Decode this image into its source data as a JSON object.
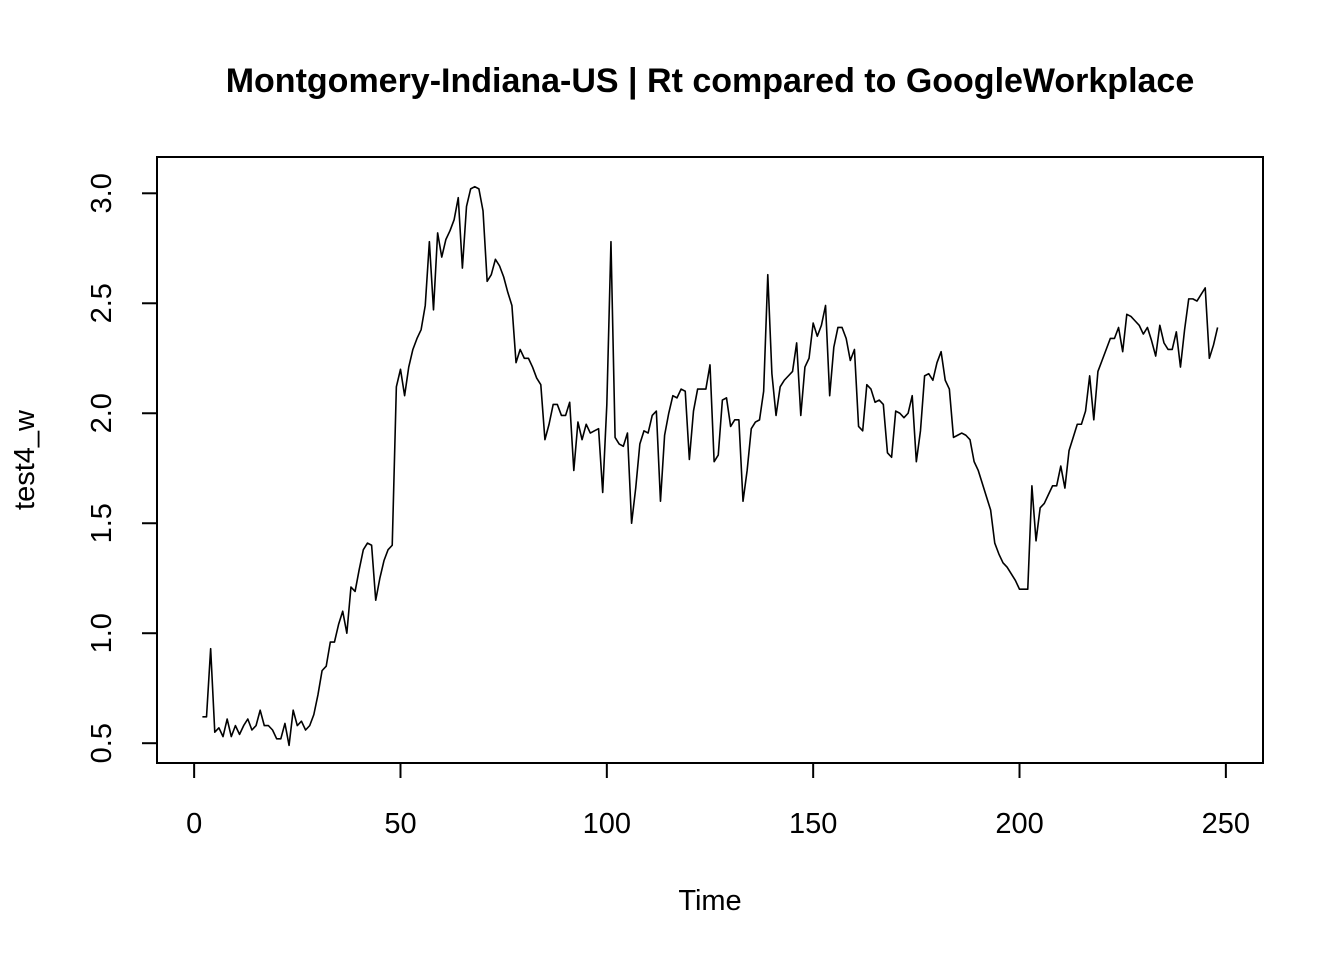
{
  "chart_data": {
    "type": "line",
    "title": "Montgomery-Indiana-US | Rt compared to GoogleWorkplace",
    "xlabel": "Time",
    "ylabel": "test4_w",
    "xlim": [
      -9,
      259
    ],
    "ylim": [
      0.41,
      3.165
    ],
    "x_ticks": [
      0,
      50,
      100,
      150,
      200,
      250
    ],
    "y_ticks": [
      0.5,
      1.0,
      1.5,
      2.0,
      2.5,
      3.0
    ],
    "x_tick_labels": [
      "0",
      "50",
      "100",
      "150",
      "200",
      "250"
    ],
    "y_tick_labels": [
      "0.5",
      "1.0",
      "1.5",
      "2.0",
      "2.5",
      "3.0"
    ],
    "grid": false,
    "legend": "none",
    "line_color": "#000000",
    "series": [
      {
        "x": [
          2,
          3,
          4,
          5,
          6,
          7,
          8,
          9,
          10,
          11,
          12,
          13,
          14,
          15,
          16,
          17,
          18,
          19,
          20,
          21,
          22,
          23,
          24,
          25,
          26,
          27,
          28,
          29,
          30,
          31,
          32,
          33,
          34,
          35,
          36,
          37,
          38,
          39,
          40,
          41,
          42,
          43,
          44,
          45,
          46,
          47,
          48,
          49,
          50,
          51,
          52,
          53,
          54,
          55,
          56,
          57,
          58,
          59,
          60,
          61,
          62,
          63,
          64,
          65,
          66,
          67,
          68,
          69,
          70,
          71,
          72,
          73,
          74,
          75,
          76,
          77,
          78,
          79,
          80,
          81,
          82,
          83,
          84,
          85,
          86,
          87,
          88,
          89,
          90,
          91,
          92,
          93,
          94,
          95,
          96,
          97,
          98,
          99,
          100,
          101,
          102,
          103,
          104,
          105,
          106,
          107,
          108,
          109,
          110,
          111,
          112,
          113,
          114,
          115,
          116,
          117,
          118,
          119,
          120,
          121,
          122,
          123,
          124,
          125,
          126,
          127,
          128,
          129,
          130,
          131,
          132,
          133,
          134,
          135,
          136,
          137,
          138,
          139,
          140,
          141,
          142,
          143,
          144,
          145,
          146,
          147,
          148,
          149,
          150,
          151,
          152,
          153,
          154,
          155,
          156,
          157,
          158,
          159,
          160,
          161,
          162,
          163,
          164,
          165,
          166,
          167,
          168,
          169,
          170,
          171,
          172,
          173,
          174,
          175,
          176,
          177,
          178,
          179,
          180,
          181,
          182,
          183,
          184,
          185,
          186,
          187,
          188,
          189,
          190,
          191,
          192,
          193,
          194,
          195,
          196,
          197,
          198,
          199,
          200,
          201,
          202,
          203,
          204,
          205,
          206,
          207,
          208,
          209,
          210,
          211,
          212,
          213,
          214,
          215,
          216,
          217,
          218,
          219,
          220,
          221,
          222,
          223,
          224,
          225,
          226,
          227,
          228,
          229,
          230,
          231,
          232,
          233,
          234,
          235,
          236,
          237,
          238,
          239,
          240,
          241,
          242,
          243,
          244,
          245,
          246,
          247,
          248
        ],
        "values": [
          0.62,
          0.62,
          0.93,
          0.55,
          0.57,
          0.53,
          0.61,
          0.53,
          0.58,
          0.54,
          0.58,
          0.61,
          0.56,
          0.58,
          0.65,
          0.58,
          0.58,
          0.56,
          0.52,
          0.52,
          0.59,
          0.49,
          0.65,
          0.58,
          0.6,
          0.56,
          0.58,
          0.63,
          0.72,
          0.83,
          0.85,
          0.96,
          0.96,
          1.04,
          1.1,
          1.0,
          1.21,
          1.19,
          1.29,
          1.38,
          1.41,
          1.4,
          1.15,
          1.25,
          1.33,
          1.38,
          1.4,
          2.12,
          2.2,
          2.08,
          2.21,
          2.29,
          2.34,
          2.38,
          2.49,
          2.78,
          2.47,
          2.82,
          2.71,
          2.79,
          2.83,
          2.88,
          2.98,
          2.66,
          2.94,
          3.02,
          3.03,
          3.02,
          2.92,
          2.6,
          2.63,
          2.7,
          2.67,
          2.62,
          2.55,
          2.49,
          2.23,
          2.29,
          2.25,
          2.25,
          2.21,
          2.16,
          2.13,
          1.88,
          1.95,
          2.04,
          2.04,
          1.99,
          1.99,
          2.05,
          1.74,
          1.96,
          1.88,
          1.95,
          1.91,
          1.92,
          1.93,
          1.64,
          2.04,
          2.78,
          1.89,
          1.86,
          1.85,
          1.91,
          1.5,
          1.66,
          1.86,
          1.92,
          1.91,
          1.99,
          2.01,
          1.6,
          1.9,
          2.0,
          2.08,
          2.07,
          2.11,
          2.1,
          1.79,
          2.01,
          2.11,
          2.11,
          2.11,
          2.22,
          1.78,
          1.81,
          2.06,
          2.07,
          1.94,
          1.97,
          1.97,
          1.6,
          1.74,
          1.93,
          1.96,
          1.97,
          2.1,
          2.63,
          2.18,
          1.99,
          2.12,
          2.15,
          2.17,
          2.19,
          2.32,
          1.99,
          2.21,
          2.25,
          2.41,
          2.35,
          2.4,
          2.49,
          2.08,
          2.3,
          2.39,
          2.39,
          2.34,
          2.24,
          2.29,
          1.94,
          1.92,
          2.13,
          2.11,
          2.05,
          2.06,
          2.04,
          1.82,
          1.8,
          2.01,
          2.0,
          1.98,
          2.0,
          2.08,
          1.78,
          1.92,
          2.17,
          2.18,
          2.15,
          2.23,
          2.28,
          2.15,
          2.11,
          1.89,
          1.9,
          1.91,
          1.9,
          1.88,
          1.78,
          1.74,
          1.68,
          1.62,
          1.56,
          1.41,
          1.36,
          1.32,
          1.3,
          1.27,
          1.24,
          1.2,
          1.2,
          1.2,
          1.67,
          1.42,
          1.57,
          1.59,
          1.63,
          1.67,
          1.67,
          1.76,
          1.66,
          1.83,
          1.89,
          1.95,
          1.95,
          2.01,
          2.17,
          1.97,
          2.19,
          2.24,
          2.29,
          2.34,
          2.34,
          2.39,
          2.28,
          2.45,
          2.44,
          2.42,
          2.4,
          2.36,
          2.39,
          2.33,
          2.26,
          2.4,
          2.32,
          2.29,
          2.29,
          2.37,
          2.21,
          2.38,
          2.52,
          2.52,
          2.51,
          2.54,
          2.57,
          2.25,
          2.31,
          2.39
        ]
      }
    ]
  }
}
